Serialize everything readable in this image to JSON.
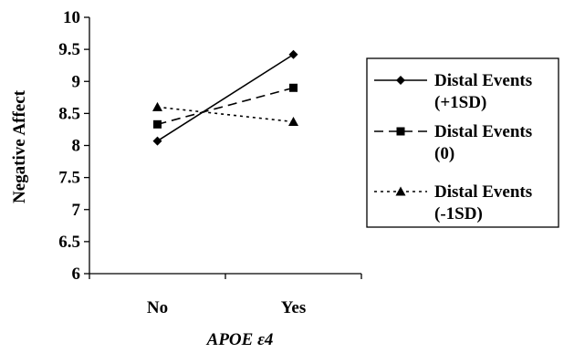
{
  "chart_data": {
    "type": "line",
    "categories": [
      "No",
      "Yes"
    ],
    "series": [
      {
        "name": [
          "Distal Events",
          "(+1SD)"
        ],
        "values": [
          8.07,
          9.42
        ],
        "marker": "diamond",
        "dash": "solid"
      },
      {
        "name": [
          "Distal Events",
          "(0)"
        ],
        "values": [
          8.33,
          8.9
        ],
        "marker": "square",
        "dash": "dashed"
      },
      {
        "name": [
          "Distal Events",
          "(-1SD)"
        ],
        "values": [
          8.6,
          8.37
        ],
        "marker": "triangle",
        "dash": "dotted"
      }
    ],
    "xlabel": "APOE ε4",
    "ylabel": "Negative Affect",
    "ylim": [
      6,
      10
    ],
    "yticks": [
      "6",
      "6.5",
      "7",
      "7.5",
      "8",
      "8.5",
      "9",
      "9.5",
      "10"
    ],
    "grid": false,
    "legend": "right",
    "colors": {
      "line": "#000000",
      "background": "#ffffff"
    }
  }
}
